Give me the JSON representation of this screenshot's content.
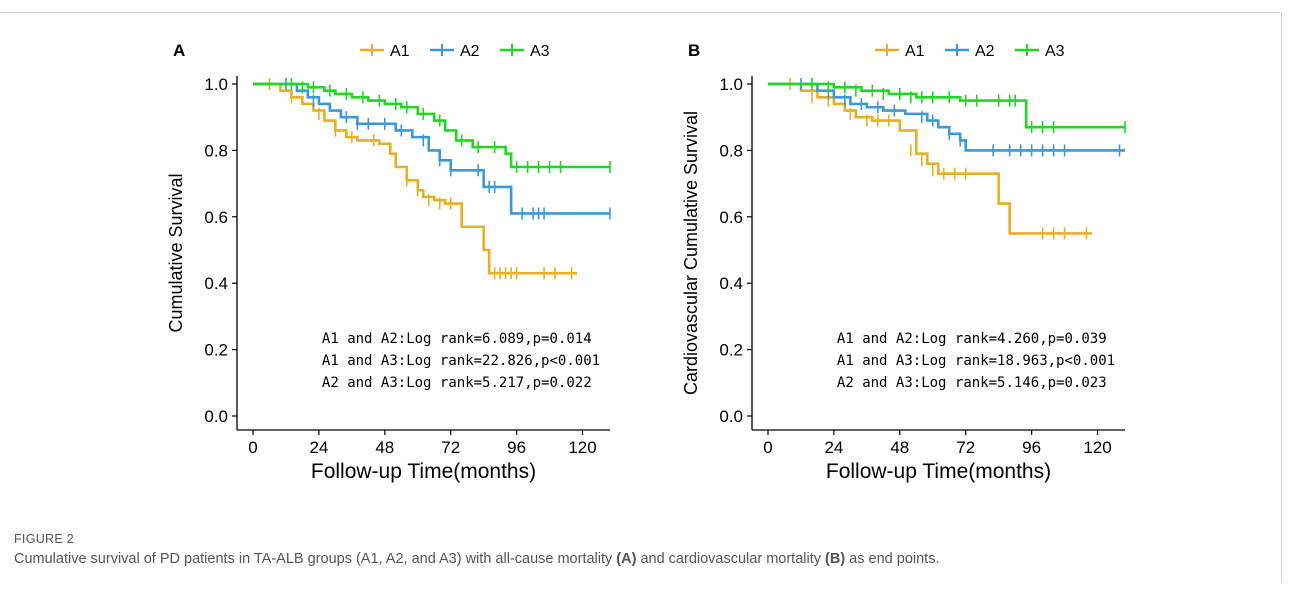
{
  "figure": {
    "label": "FIGURE 2",
    "caption_parts": [
      {
        "text": "Cumulative survival of PD patients in TA-ALB groups (A1, A2, and A3) with all-cause mortality ",
        "bold": false
      },
      {
        "text": "(A)",
        "bold": true
      },
      {
        "text": " and cardiovascular mortality ",
        "bold": false
      },
      {
        "text": "(B)",
        "bold": true
      },
      {
        "text": " as end points.",
        "bold": false
      }
    ]
  },
  "chart_data": [
    {
      "type": "line",
      "panel_label": "A",
      "xlabel": "Follow-up Time(months)",
      "ylabel": "Cumulative Survival",
      "xlim": [
        0,
        130
      ],
      "ylim": [
        0,
        1.0
      ],
      "xticks": [
        0,
        24,
        48,
        72,
        96,
        120
      ],
      "yticks": [
        "0.0",
        "0.2",
        "0.4",
        "0.6",
        "0.8",
        "1.0"
      ],
      "legend_position": "top",
      "series": [
        {
          "name": "A1",
          "color": "#E6B022",
          "x": [
            0,
            6,
            10,
            14,
            18,
            22,
            26,
            30,
            34,
            38,
            42,
            46,
            50,
            52,
            56,
            60,
            62,
            66,
            70,
            76,
            80,
            84,
            86,
            118
          ],
          "y": [
            1.0,
            1.0,
            0.98,
            0.96,
            0.94,
            0.92,
            0.89,
            0.86,
            0.84,
            0.83,
            0.83,
            0.82,
            0.79,
            0.75,
            0.71,
            0.68,
            0.66,
            0.65,
            0.64,
            0.57,
            0.57,
            0.5,
            0.43,
            0.43
          ],
          "censored": [
            [
              6,
              1.0
            ],
            [
              14,
              0.96
            ],
            [
              24,
              0.91
            ],
            [
              30,
              0.86
            ],
            [
              36,
              0.84
            ],
            [
              44,
              0.83
            ],
            [
              56,
              0.71
            ],
            [
              60,
              0.68
            ],
            [
              64,
              0.65
            ],
            [
              68,
              0.64
            ],
            [
              72,
              0.64
            ],
            [
              88,
              0.43
            ],
            [
              90,
              0.43
            ],
            [
              92,
              0.43
            ],
            [
              94,
              0.43
            ],
            [
              96,
              0.43
            ],
            [
              106,
              0.43
            ],
            [
              110,
              0.43
            ],
            [
              116,
              0.43
            ]
          ]
        },
        {
          "name": "A2",
          "color": "#3A9AD9",
          "x": [
            0,
            10,
            16,
            20,
            24,
            28,
            32,
            38,
            42,
            46,
            52,
            58,
            64,
            68,
            72,
            78,
            84,
            90,
            94,
            130
          ],
          "y": [
            1.0,
            1.0,
            0.98,
            0.96,
            0.94,
            0.92,
            0.9,
            0.88,
            0.88,
            0.88,
            0.86,
            0.84,
            0.8,
            0.77,
            0.74,
            0.74,
            0.69,
            0.69,
            0.61,
            0.61
          ],
          "censored": [
            [
              12,
              1.0
            ],
            [
              22,
              0.95
            ],
            [
              34,
              0.9
            ],
            [
              38,
              0.88
            ],
            [
              42,
              0.88
            ],
            [
              48,
              0.88
            ],
            [
              54,
              0.86
            ],
            [
              62,
              0.83
            ],
            [
              68,
              0.77
            ],
            [
              72,
              0.74
            ],
            [
              82,
              0.74
            ],
            [
              86,
              0.69
            ],
            [
              88,
              0.69
            ],
            [
              98,
              0.61
            ],
            [
              102,
              0.61
            ],
            [
              104,
              0.61
            ],
            [
              106,
              0.61
            ],
            [
              130,
              0.61
            ]
          ]
        },
        {
          "name": "A3",
          "color": "#1FD81F",
          "x": [
            0,
            12,
            20,
            26,
            30,
            36,
            42,
            48,
            54,
            60,
            66,
            70,
            74,
            80,
            86,
            92,
            94,
            130
          ],
          "y": [
            1.0,
            1.0,
            0.99,
            0.98,
            0.97,
            0.96,
            0.95,
            0.94,
            0.93,
            0.91,
            0.89,
            0.86,
            0.83,
            0.81,
            0.81,
            0.79,
            0.75,
            0.75
          ],
          "censored": [
            [
              14,
              1.0
            ],
            [
              18,
              0.99
            ],
            [
              22,
              0.99
            ],
            [
              28,
              0.98
            ],
            [
              34,
              0.97
            ],
            [
              40,
              0.96
            ],
            [
              46,
              0.95
            ],
            [
              52,
              0.94
            ],
            [
              56,
              0.93
            ],
            [
              62,
              0.91
            ],
            [
              68,
              0.89
            ],
            [
              76,
              0.83
            ],
            [
              82,
              0.81
            ],
            [
              88,
              0.81
            ],
            [
              96,
              0.75
            ],
            [
              100,
              0.75
            ],
            [
              104,
              0.75
            ],
            [
              108,
              0.75
            ],
            [
              112,
              0.75
            ],
            [
              130,
              0.75
            ]
          ]
        }
      ],
      "annotations": [
        "A1 and A2:Log rank=6.089,p=0.014",
        "A1 and A3:Log rank=22.826,p<0.001",
        "A2 and A3:Log rank=5.217,p=0.022"
      ]
    },
    {
      "type": "line",
      "panel_label": "B",
      "xlabel": "Follow-up Time(months)",
      "ylabel": "Cardiovascular Cumulative Survival",
      "xlim": [
        0,
        130
      ],
      "ylim": [
        0,
        1.0
      ],
      "xticks": [
        0,
        24,
        48,
        72,
        96,
        120
      ],
      "yticks": [
        "0.0",
        "0.2",
        "0.4",
        "0.6",
        "0.8",
        "1.0"
      ],
      "legend_position": "top",
      "series": [
        {
          "name": "A1",
          "color": "#E6B022",
          "x": [
            0,
            8,
            12,
            18,
            24,
            28,
            32,
            38,
            44,
            48,
            54,
            58,
            62,
            66,
            80,
            84,
            88,
            118
          ],
          "y": [
            1.0,
            1.0,
            0.98,
            0.96,
            0.94,
            0.92,
            0.9,
            0.89,
            0.89,
            0.86,
            0.79,
            0.76,
            0.73,
            0.73,
            0.73,
            0.64,
            0.55,
            0.55
          ],
          "censored": [
            [
              8,
              1.0
            ],
            [
              16,
              0.96
            ],
            [
              22,
              0.95
            ],
            [
              30,
              0.91
            ],
            [
              36,
              0.89
            ],
            [
              40,
              0.89
            ],
            [
              44,
              0.89
            ],
            [
              52,
              0.8
            ],
            [
              56,
              0.77
            ],
            [
              60,
              0.74
            ],
            [
              64,
              0.73
            ],
            [
              68,
              0.73
            ],
            [
              72,
              0.73
            ],
            [
              100,
              0.55
            ],
            [
              104,
              0.55
            ],
            [
              108,
              0.55
            ],
            [
              116,
              0.55
            ]
          ]
        },
        {
          "name": "A2",
          "color": "#3A9AD9",
          "x": [
            0,
            10,
            18,
            24,
            30,
            36,
            42,
            50,
            58,
            62,
            66,
            70,
            72,
            130
          ],
          "y": [
            1.0,
            1.0,
            0.98,
            0.96,
            0.94,
            0.93,
            0.92,
            0.91,
            0.89,
            0.87,
            0.85,
            0.83,
            0.8,
            0.8
          ],
          "censored": [
            [
              12,
              1.0
            ],
            [
              22,
              0.97
            ],
            [
              28,
              0.95
            ],
            [
              34,
              0.94
            ],
            [
              40,
              0.93
            ],
            [
              46,
              0.92
            ],
            [
              56,
              0.9
            ],
            [
              60,
              0.89
            ],
            [
              66,
              0.85
            ],
            [
              70,
              0.83
            ],
            [
              82,
              0.8
            ],
            [
              88,
              0.8
            ],
            [
              92,
              0.8
            ],
            [
              96,
              0.8
            ],
            [
              100,
              0.8
            ],
            [
              104,
              0.8
            ],
            [
              108,
              0.8
            ],
            [
              128,
              0.8
            ]
          ]
        },
        {
          "name": "A3",
          "color": "#1FD81F",
          "x": [
            0,
            14,
            24,
            34,
            44,
            54,
            64,
            70,
            80,
            92,
            94,
            130
          ],
          "y": [
            1.0,
            1.0,
            0.99,
            0.98,
            0.97,
            0.96,
            0.96,
            0.95,
            0.95,
            0.95,
            0.87,
            0.87
          ],
          "censored": [
            [
              16,
              1.0
            ],
            [
              22,
              0.99
            ],
            [
              28,
              0.99
            ],
            [
              32,
              0.98
            ],
            [
              38,
              0.98
            ],
            [
              42,
              0.97
            ],
            [
              48,
              0.97
            ],
            [
              52,
              0.96
            ],
            [
              56,
              0.96
            ],
            [
              60,
              0.96
            ],
            [
              66,
              0.96
            ],
            [
              72,
              0.95
            ],
            [
              76,
              0.95
            ],
            [
              84,
              0.95
            ],
            [
              88,
              0.95
            ],
            [
              90,
              0.95
            ],
            [
              96,
              0.87
            ],
            [
              100,
              0.87
            ],
            [
              104,
              0.87
            ],
            [
              130,
              0.87
            ]
          ]
        }
      ],
      "annotations": [
        "A1 and A2:Log rank=4.260,p=0.039",
        "A1 and A3:Log rank=18.963,p<0.001",
        "A2 and A3:Log rank=5.146,p=0.023"
      ]
    }
  ]
}
